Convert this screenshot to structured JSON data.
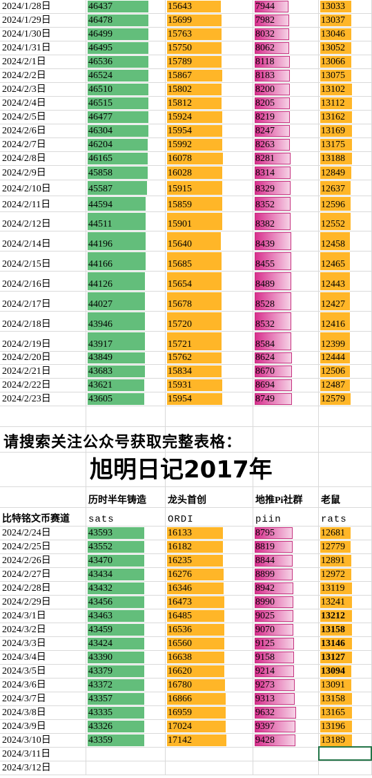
{
  "top_rows": [
    [
      "2024/1/28日",
      46437,
      15643,
      7944,
      13033
    ],
    [
      "2024/1/29日",
      46478,
      15699,
      7982,
      13037
    ],
    [
      "2024/1/30日",
      46499,
      15763,
      8032,
      13046
    ],
    [
      "2024/1/31日",
      46495,
      15750,
      8062,
      13052
    ],
    [
      "2024/2/1日",
      46536,
      15789,
      8118,
      13066
    ],
    [
      "2024/2/2日",
      46524,
      15867,
      8183,
      13075
    ],
    [
      "2024/2/3日",
      46510,
      15802,
      8200,
      13102
    ],
    [
      "2024/2/4日",
      46515,
      15812,
      8205,
      13112
    ],
    [
      "2024/2/5日",
      46477,
      15924,
      8219,
      13162
    ],
    [
      "2024/2/6日",
      46304,
      15954,
      8247,
      13169
    ],
    [
      "2024/2/7日",
      46204,
      15992,
      8263,
      13175
    ],
    [
      "2024/2/8日",
      46165,
      16078,
      8281,
      13188
    ],
    [
      "2024/2/9日",
      45858,
      16028,
      8314,
      12849
    ],
    [
      "2024/2/10日",
      45587,
      15915,
      8329,
      12637
    ],
    [
      "2024/2/11日",
      44594,
      15859,
      8352,
      12596
    ],
    [
      "2024/2/12日",
      44511,
      15901,
      8382,
      12552
    ],
    [
      "2024/2/14日",
      44196,
      15640,
      8439,
      12458
    ],
    [
      "2024/2/15日",
      44166,
      15685,
      8455,
      12465
    ],
    [
      "2024/2/16日",
      44126,
      15654,
      8489,
      12443
    ],
    [
      "2024/2/17日",
      44027,
      15678,
      8528,
      12427
    ],
    [
      "2024/2/18日",
      43946,
      15720,
      8532,
      12416
    ],
    [
      "2024/2/19日",
      43917,
      15721,
      8584,
      12399
    ],
    [
      "2024/2/20日",
      43849,
      15762,
      8624,
      12444
    ],
    [
      "2024/2/21日",
      43683,
      15834,
      8670,
      12506
    ],
    [
      "2024/2/22日",
      43621,
      15931,
      8694,
      12487
    ],
    [
      "2024/2/23日",
      43605,
      15954,
      8749,
      12579
    ]
  ],
  "notice": "请搜索关注公众号获取完整表格：",
  "title": "旭明日记2017年",
  "header": [
    "历时半年铸造",
    "龙头首创",
    "地推Pi社群",
    "老鼠"
  ],
  "subheader": {
    "label": "比特铭文币赛道",
    "names": [
      "sats",
      "ORDI",
      "piin",
      "rats"
    ]
  },
  "bottom_rows": [
    [
      "2024/2/24日",
      43593,
      16133,
      8795,
      12681
    ],
    [
      "2024/2/25日",
      43552,
      16182,
      8819,
      12779
    ],
    [
      "2024/2/26日",
      43470,
      16235,
      8844,
      12891
    ],
    [
      "2024/2/27日",
      43434,
      16276,
      8899,
      12972
    ],
    [
      "2024/2/28日",
      43432,
      16346,
      8942,
      13119
    ],
    [
      "2024/2/29日",
      43456,
      16473,
      8990,
      13241
    ],
    [
      "2024/3/1日",
      43463,
      16485,
      9025,
      13212
    ],
    [
      "2024/3/2日",
      43459,
      16536,
      9070,
      13158
    ],
    [
      "2024/3/3日",
      43424,
      16560,
      9125,
      13146
    ],
    [
      "2024/3/4日",
      43390,
      16638,
      9158,
      13127
    ],
    [
      "2024/3/5日",
      43379,
      16620,
      9214,
      13094
    ],
    [
      "2024/3/6日",
      43372,
      16780,
      9273,
      13091
    ],
    [
      "2024/3/7日",
      43357,
      16866,
      9313,
      13158
    ],
    [
      "2024/3/8日",
      43335,
      16959,
      9632,
      13165
    ],
    [
      "2024/3/9日",
      43326,
      17024,
      9397,
      13196
    ],
    [
      "2024/3/10日",
      43359,
      17142,
      9428,
      13189
    ],
    [
      "2024/3/11日",
      null,
      null,
      null,
      null
    ],
    [
      "2024/3/12日",
      null,
      null,
      null,
      null
    ]
  ]
}
